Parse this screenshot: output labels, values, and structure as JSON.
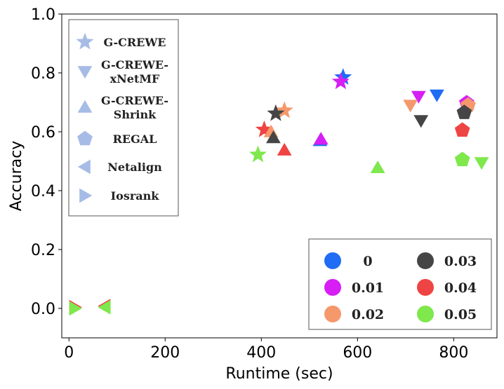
{
  "chart_data": {
    "type": "scatter",
    "xlabel": "Runtime (sec)",
    "ylabel": "Accuracy",
    "xlim": [
      -15,
      890
    ],
    "ylim": [
      -0.1,
      1.0
    ],
    "x_ticks": [
      "0",
      "200",
      "400",
      "600",
      "800"
    ],
    "y_ticks": [
      "0.0",
      "0.2",
      "0.4",
      "0.6",
      "0.8",
      "1.0"
    ],
    "legend_placement": [
      "upper-left",
      "lower-right"
    ],
    "method_legend": [
      {
        "marker": "star",
        "lines": [
          "G-CREWE"
        ]
      },
      {
        "marker": "triangle-down",
        "lines": [
          "G-CREWE-",
          "xNetMF"
        ]
      },
      {
        "marker": "triangle-up",
        "lines": [
          "G-CREWE-",
          "Shrink"
        ]
      },
      {
        "marker": "pentagon",
        "lines": [
          "REGAL"
        ]
      },
      {
        "marker": "triangle-left",
        "lines": [
          "Netalign"
        ]
      },
      {
        "marker": "triangle-right",
        "lines": [
          "Iosrank"
        ]
      }
    ],
    "method_legend_color": "#a6bce6",
    "noise_legend": [
      {
        "label": "0",
        "color": "#1f6cf5"
      },
      {
        "label": "0.01",
        "color": "#d61ef5"
      },
      {
        "label": "0.02",
        "color": "#f5986b"
      },
      {
        "label": "0.03",
        "color": "#454545"
      },
      {
        "label": "0.04",
        "color": "#ef4444"
      },
      {
        "label": "0.05",
        "color": "#7ee84c"
      }
    ],
    "points": [
      {
        "method": "G-CREWE",
        "marker": "star",
        "noise": "0",
        "x": 570,
        "y": 0.785
      },
      {
        "method": "G-CREWE",
        "marker": "star",
        "noise": "0.01",
        "x": 565,
        "y": 0.77
      },
      {
        "method": "G-CREWE",
        "marker": "star",
        "noise": "0.02",
        "x": 448,
        "y": 0.672
      },
      {
        "method": "G-CREWE",
        "marker": "star",
        "noise": "0.03",
        "x": 430,
        "y": 0.662
      },
      {
        "method": "G-CREWE",
        "marker": "star",
        "noise": "0.04",
        "x": 406,
        "y": 0.607
      },
      {
        "method": "G-CREWE",
        "marker": "star",
        "noise": "0.05",
        "x": 393,
        "y": 0.522
      },
      {
        "method": "G-CREWE-xNetMF",
        "marker": "triangle-down",
        "noise": "0",
        "x": 765,
        "y": 0.725
      },
      {
        "method": "G-CREWE-xNetMF",
        "marker": "triangle-down",
        "noise": "0.01",
        "x": 727,
        "y": 0.72
      },
      {
        "method": "G-CREWE-xNetMF",
        "marker": "triangle-down",
        "noise": "0.02",
        "x": 710,
        "y": 0.69
      },
      {
        "method": "G-CREWE-xNetMF",
        "marker": "triangle-down",
        "noise": "0.03",
        "x": 732,
        "y": 0.638
      },
      {
        "method": "G-CREWE-xNetMF",
        "marker": "triangle-down",
        "noise": "0.05",
        "x": 858,
        "y": 0.495
      },
      {
        "method": "G-CREWE-Shrink",
        "marker": "triangle-up",
        "noise": "0",
        "x": 522,
        "y": 0.57
      },
      {
        "method": "G-CREWE-Shrink",
        "marker": "triangle-up",
        "noise": "0.01",
        "x": 524,
        "y": 0.575
      },
      {
        "method": "G-CREWE-Shrink",
        "marker": "triangle-up",
        "noise": "0.02",
        "x": 420,
        "y": 0.6
      },
      {
        "method": "G-CREWE-Shrink",
        "marker": "triangle-up",
        "noise": "0.03",
        "x": 425,
        "y": 0.58
      },
      {
        "method": "G-CREWE-Shrink",
        "marker": "triangle-up",
        "noise": "0.04",
        "x": 448,
        "y": 0.538
      },
      {
        "method": "G-CREWE-Shrink",
        "marker": "triangle-up",
        "noise": "0.05",
        "x": 642,
        "y": 0.478
      },
      {
        "method": "REGAL",
        "marker": "pentagon",
        "noise": "0.01",
        "x": 827,
        "y": 0.698
      },
      {
        "method": "REGAL",
        "marker": "pentagon",
        "noise": "0.02",
        "x": 830,
        "y": 0.69
      },
      {
        "method": "REGAL",
        "marker": "pentagon",
        "noise": "0.03",
        "x": 822,
        "y": 0.665
      },
      {
        "method": "REGAL",
        "marker": "pentagon",
        "noise": "0.04",
        "x": 818,
        "y": 0.605
      },
      {
        "method": "REGAL",
        "marker": "pentagon",
        "noise": "0.05",
        "x": 818,
        "y": 0.505
      },
      {
        "method": "Netalign",
        "marker": "triangle-left",
        "noise": "0.04",
        "x": 75,
        "y": 0.008
      },
      {
        "method": "Netalign",
        "marker": "triangle-left",
        "noise": "0.05",
        "x": 75,
        "y": 0.004
      },
      {
        "method": "Iosrank",
        "marker": "triangle-right",
        "noise": "0.04",
        "x": 12,
        "y": 0.004
      },
      {
        "method": "Iosrank",
        "marker": "triangle-right",
        "noise": "0.05",
        "x": 12,
        "y": 0.0
      }
    ]
  }
}
